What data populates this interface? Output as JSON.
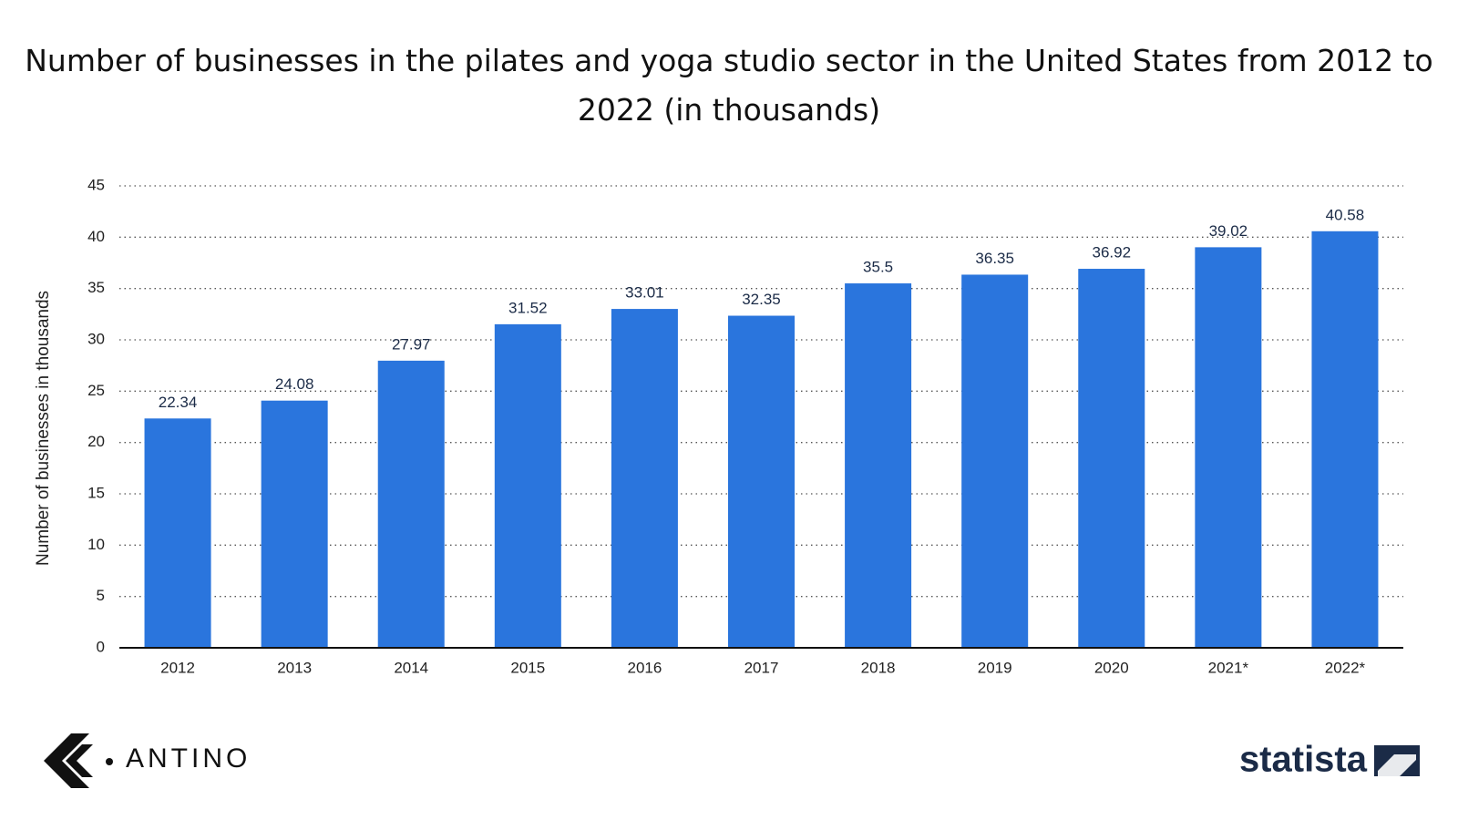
{
  "chart_data": {
    "type": "bar",
    "title": "Number of businesses in the pilates and yoga studio sector in the United States from 2012 to 2022 (in thousands)",
    "y_label": "Number of businesses in thousands",
    "categories": [
      "2012",
      "2013",
      "2014",
      "2015",
      "2016",
      "2017",
      "2018",
      "2019",
      "2020",
      "2021*",
      "2022*"
    ],
    "values": [
      22.34,
      24.08,
      27.97,
      31.52,
      33.01,
      32.35,
      35.5,
      36.35,
      36.92,
      39.02,
      40.58
    ],
    "color": "#2a75dd",
    "ylim": [
      0,
      45
    ],
    "yticks": [
      0,
      5,
      10,
      15,
      20,
      25,
      30,
      35,
      40,
      45
    ],
    "grid": true
  },
  "logos": {
    "left": "ANTINO",
    "right": "statista"
  }
}
